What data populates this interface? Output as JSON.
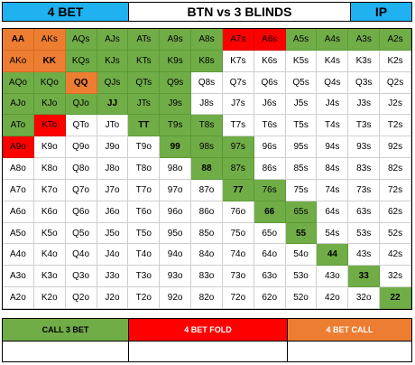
{
  "header": {
    "left": "4 BET",
    "center": "BTN vs 3 BLINDS",
    "right": "IP"
  },
  "colors": {
    "green": "#70ad47",
    "orange": "#ed7d31",
    "red": "#ff0000",
    "blue": "#1fb1f0",
    "white": "#ffffff"
  },
  "grid": [
    [
      {
        "t": "AA",
        "c": "orange",
        "b": true
      },
      {
        "t": "AKs",
        "c": "orange"
      },
      {
        "t": "AQs",
        "c": "green"
      },
      {
        "t": "AJs",
        "c": "green"
      },
      {
        "t": "ATs",
        "c": "green"
      },
      {
        "t": "A9s",
        "c": "green"
      },
      {
        "t": "A8s",
        "c": "green"
      },
      {
        "t": "A7s",
        "c": "red"
      },
      {
        "t": "A6s",
        "c": "red"
      },
      {
        "t": "A5s",
        "c": "green"
      },
      {
        "t": "A4s",
        "c": "green"
      },
      {
        "t": "A3s",
        "c": "green"
      },
      {
        "t": "A2s",
        "c": "green"
      }
    ],
    [
      {
        "t": "AKo",
        "c": "orange"
      },
      {
        "t": "KK",
        "c": "orange",
        "b": true
      },
      {
        "t": "KQs",
        "c": "green"
      },
      {
        "t": "KJs",
        "c": "green"
      },
      {
        "t": "KTs",
        "c": "green"
      },
      {
        "t": "K9s",
        "c": "green"
      },
      {
        "t": "K8s",
        "c": "green"
      },
      {
        "t": "K7s",
        "c": "white"
      },
      {
        "t": "K6s",
        "c": "white"
      },
      {
        "t": "K5s",
        "c": "white"
      },
      {
        "t": "K4s",
        "c": "white"
      },
      {
        "t": "K3s",
        "c": "white"
      },
      {
        "t": "K2s",
        "c": "white"
      }
    ],
    [
      {
        "t": "AQo",
        "c": "green"
      },
      {
        "t": "KQo",
        "c": "green"
      },
      {
        "t": "QQ",
        "c": "orange",
        "b": true
      },
      {
        "t": "QJs",
        "c": "green"
      },
      {
        "t": "QTs",
        "c": "green"
      },
      {
        "t": "Q9s",
        "c": "green"
      },
      {
        "t": "Q8s",
        "c": "white"
      },
      {
        "t": "Q7s",
        "c": "white"
      },
      {
        "t": "Q6s",
        "c": "white"
      },
      {
        "t": "Q5s",
        "c": "white"
      },
      {
        "t": "Q4s",
        "c": "white"
      },
      {
        "t": "Q3s",
        "c": "white"
      },
      {
        "t": "Q2s",
        "c": "white"
      }
    ],
    [
      {
        "t": "AJo",
        "c": "green"
      },
      {
        "t": "KJo",
        "c": "green"
      },
      {
        "t": "QJo",
        "c": "green"
      },
      {
        "t": "JJ",
        "c": "green",
        "b": true
      },
      {
        "t": "JTs",
        "c": "green"
      },
      {
        "t": "J9s",
        "c": "green"
      },
      {
        "t": "J8s",
        "c": "white"
      },
      {
        "t": "J7s",
        "c": "white"
      },
      {
        "t": "J6s",
        "c": "white"
      },
      {
        "t": "J5s",
        "c": "white"
      },
      {
        "t": "J4s",
        "c": "white"
      },
      {
        "t": "J3s",
        "c": "white"
      },
      {
        "t": "J2s",
        "c": "white"
      }
    ],
    [
      {
        "t": "ATo",
        "c": "green"
      },
      {
        "t": "KTo",
        "c": "red"
      },
      {
        "t": "QTo",
        "c": "white"
      },
      {
        "t": "JTo",
        "c": "white"
      },
      {
        "t": "TT",
        "c": "green",
        "b": true
      },
      {
        "t": "T9s",
        "c": "green"
      },
      {
        "t": "T8s",
        "c": "green"
      },
      {
        "t": "T7s",
        "c": "white"
      },
      {
        "t": "T6s",
        "c": "white"
      },
      {
        "t": "T5s",
        "c": "white"
      },
      {
        "t": "T4s",
        "c": "white"
      },
      {
        "t": "T3s",
        "c": "white"
      },
      {
        "t": "T2s",
        "c": "white"
      }
    ],
    [
      {
        "t": "A9o",
        "c": "red"
      },
      {
        "t": "K9o",
        "c": "white"
      },
      {
        "t": "Q9o",
        "c": "white"
      },
      {
        "t": "J9o",
        "c": "white"
      },
      {
        "t": "T9o",
        "c": "white"
      },
      {
        "t": "99",
        "c": "green",
        "b": true
      },
      {
        "t": "98s",
        "c": "green"
      },
      {
        "t": "97s",
        "c": "green"
      },
      {
        "t": "96s",
        "c": "white"
      },
      {
        "t": "95s",
        "c": "white"
      },
      {
        "t": "94s",
        "c": "white"
      },
      {
        "t": "93s",
        "c": "white"
      },
      {
        "t": "92s",
        "c": "white"
      }
    ],
    [
      {
        "t": "A8o",
        "c": "white"
      },
      {
        "t": "K8o",
        "c": "white"
      },
      {
        "t": "Q8o",
        "c": "white"
      },
      {
        "t": "J8o",
        "c": "white"
      },
      {
        "t": "T8o",
        "c": "white"
      },
      {
        "t": "98o",
        "c": "white"
      },
      {
        "t": "88",
        "c": "green",
        "b": true
      },
      {
        "t": "87s",
        "c": "green"
      },
      {
        "t": "86s",
        "c": "white"
      },
      {
        "t": "85s",
        "c": "white"
      },
      {
        "t": "84s",
        "c": "white"
      },
      {
        "t": "83s",
        "c": "white"
      },
      {
        "t": "82s",
        "c": "white"
      }
    ],
    [
      {
        "t": "A7o",
        "c": "white"
      },
      {
        "t": "K7o",
        "c": "white"
      },
      {
        "t": "Q7o",
        "c": "white"
      },
      {
        "t": "J7o",
        "c": "white"
      },
      {
        "t": "T7o",
        "c": "white"
      },
      {
        "t": "97o",
        "c": "white"
      },
      {
        "t": "87o",
        "c": "white"
      },
      {
        "t": "77",
        "c": "green",
        "b": true
      },
      {
        "t": "76s",
        "c": "green"
      },
      {
        "t": "75s",
        "c": "white"
      },
      {
        "t": "74s",
        "c": "white"
      },
      {
        "t": "73s",
        "c": "white"
      },
      {
        "t": "72s",
        "c": "white"
      }
    ],
    [
      {
        "t": "A6o",
        "c": "white"
      },
      {
        "t": "K6o",
        "c": "white"
      },
      {
        "t": "Q6o",
        "c": "white"
      },
      {
        "t": "J6o",
        "c": "white"
      },
      {
        "t": "T6o",
        "c": "white"
      },
      {
        "t": "96o",
        "c": "white"
      },
      {
        "t": "86o",
        "c": "white"
      },
      {
        "t": "76o",
        "c": "white"
      },
      {
        "t": "66",
        "c": "green",
        "b": true
      },
      {
        "t": "65s",
        "c": "green"
      },
      {
        "t": "64s",
        "c": "white"
      },
      {
        "t": "63s",
        "c": "white"
      },
      {
        "t": "62s",
        "c": "white"
      }
    ],
    [
      {
        "t": "A5o",
        "c": "white"
      },
      {
        "t": "K5o",
        "c": "white"
      },
      {
        "t": "Q5o",
        "c": "white"
      },
      {
        "t": "J5o",
        "c": "white"
      },
      {
        "t": "T5o",
        "c": "white"
      },
      {
        "t": "95o",
        "c": "white"
      },
      {
        "t": "85o",
        "c": "white"
      },
      {
        "t": "75o",
        "c": "white"
      },
      {
        "t": "65o",
        "c": "white"
      },
      {
        "t": "55",
        "c": "green",
        "b": true
      },
      {
        "t": "54s",
        "c": "white"
      },
      {
        "t": "53s",
        "c": "white"
      },
      {
        "t": "52s",
        "c": "white"
      }
    ],
    [
      {
        "t": "A4o",
        "c": "white"
      },
      {
        "t": "K4o",
        "c": "white"
      },
      {
        "t": "Q4o",
        "c": "white"
      },
      {
        "t": "J4o",
        "c": "white"
      },
      {
        "t": "T4o",
        "c": "white"
      },
      {
        "t": "94o",
        "c": "white"
      },
      {
        "t": "84o",
        "c": "white"
      },
      {
        "t": "74o",
        "c": "white"
      },
      {
        "t": "64o",
        "c": "white"
      },
      {
        "t": "54o",
        "c": "white"
      },
      {
        "t": "44",
        "c": "green",
        "b": true
      },
      {
        "t": "43s",
        "c": "white"
      },
      {
        "t": "42s",
        "c": "white"
      }
    ],
    [
      {
        "t": "A3o",
        "c": "white"
      },
      {
        "t": "K3o",
        "c": "white"
      },
      {
        "t": "Q3o",
        "c": "white"
      },
      {
        "t": "J3o",
        "c": "white"
      },
      {
        "t": "T3o",
        "c": "white"
      },
      {
        "t": "93o",
        "c": "white"
      },
      {
        "t": "83o",
        "c": "white"
      },
      {
        "t": "73o",
        "c": "white"
      },
      {
        "t": "63o",
        "c": "white"
      },
      {
        "t": "53o",
        "c": "white"
      },
      {
        "t": "43o",
        "c": "white"
      },
      {
        "t": "33",
        "c": "green",
        "b": true
      },
      {
        "t": "32s",
        "c": "white"
      }
    ],
    [
      {
        "t": "A2o",
        "c": "white"
      },
      {
        "t": "K2o",
        "c": "white"
      },
      {
        "t": "Q2o",
        "c": "white"
      },
      {
        "t": "J2o",
        "c": "white"
      },
      {
        "t": "T2o",
        "c": "white"
      },
      {
        "t": "92o",
        "c": "white"
      },
      {
        "t": "82o",
        "c": "white"
      },
      {
        "t": "72o",
        "c": "white"
      },
      {
        "t": "62o",
        "c": "white"
      },
      {
        "t": "52o",
        "c": "white"
      },
      {
        "t": "42o",
        "c": "white"
      },
      {
        "t": "32o",
        "c": "white"
      },
      {
        "t": "22",
        "c": "green",
        "b": true
      }
    ]
  ],
  "legend": {
    "call": "CALL 3 BET",
    "fold": "4 BET FOLD",
    "call4": "4 BET CALL"
  }
}
